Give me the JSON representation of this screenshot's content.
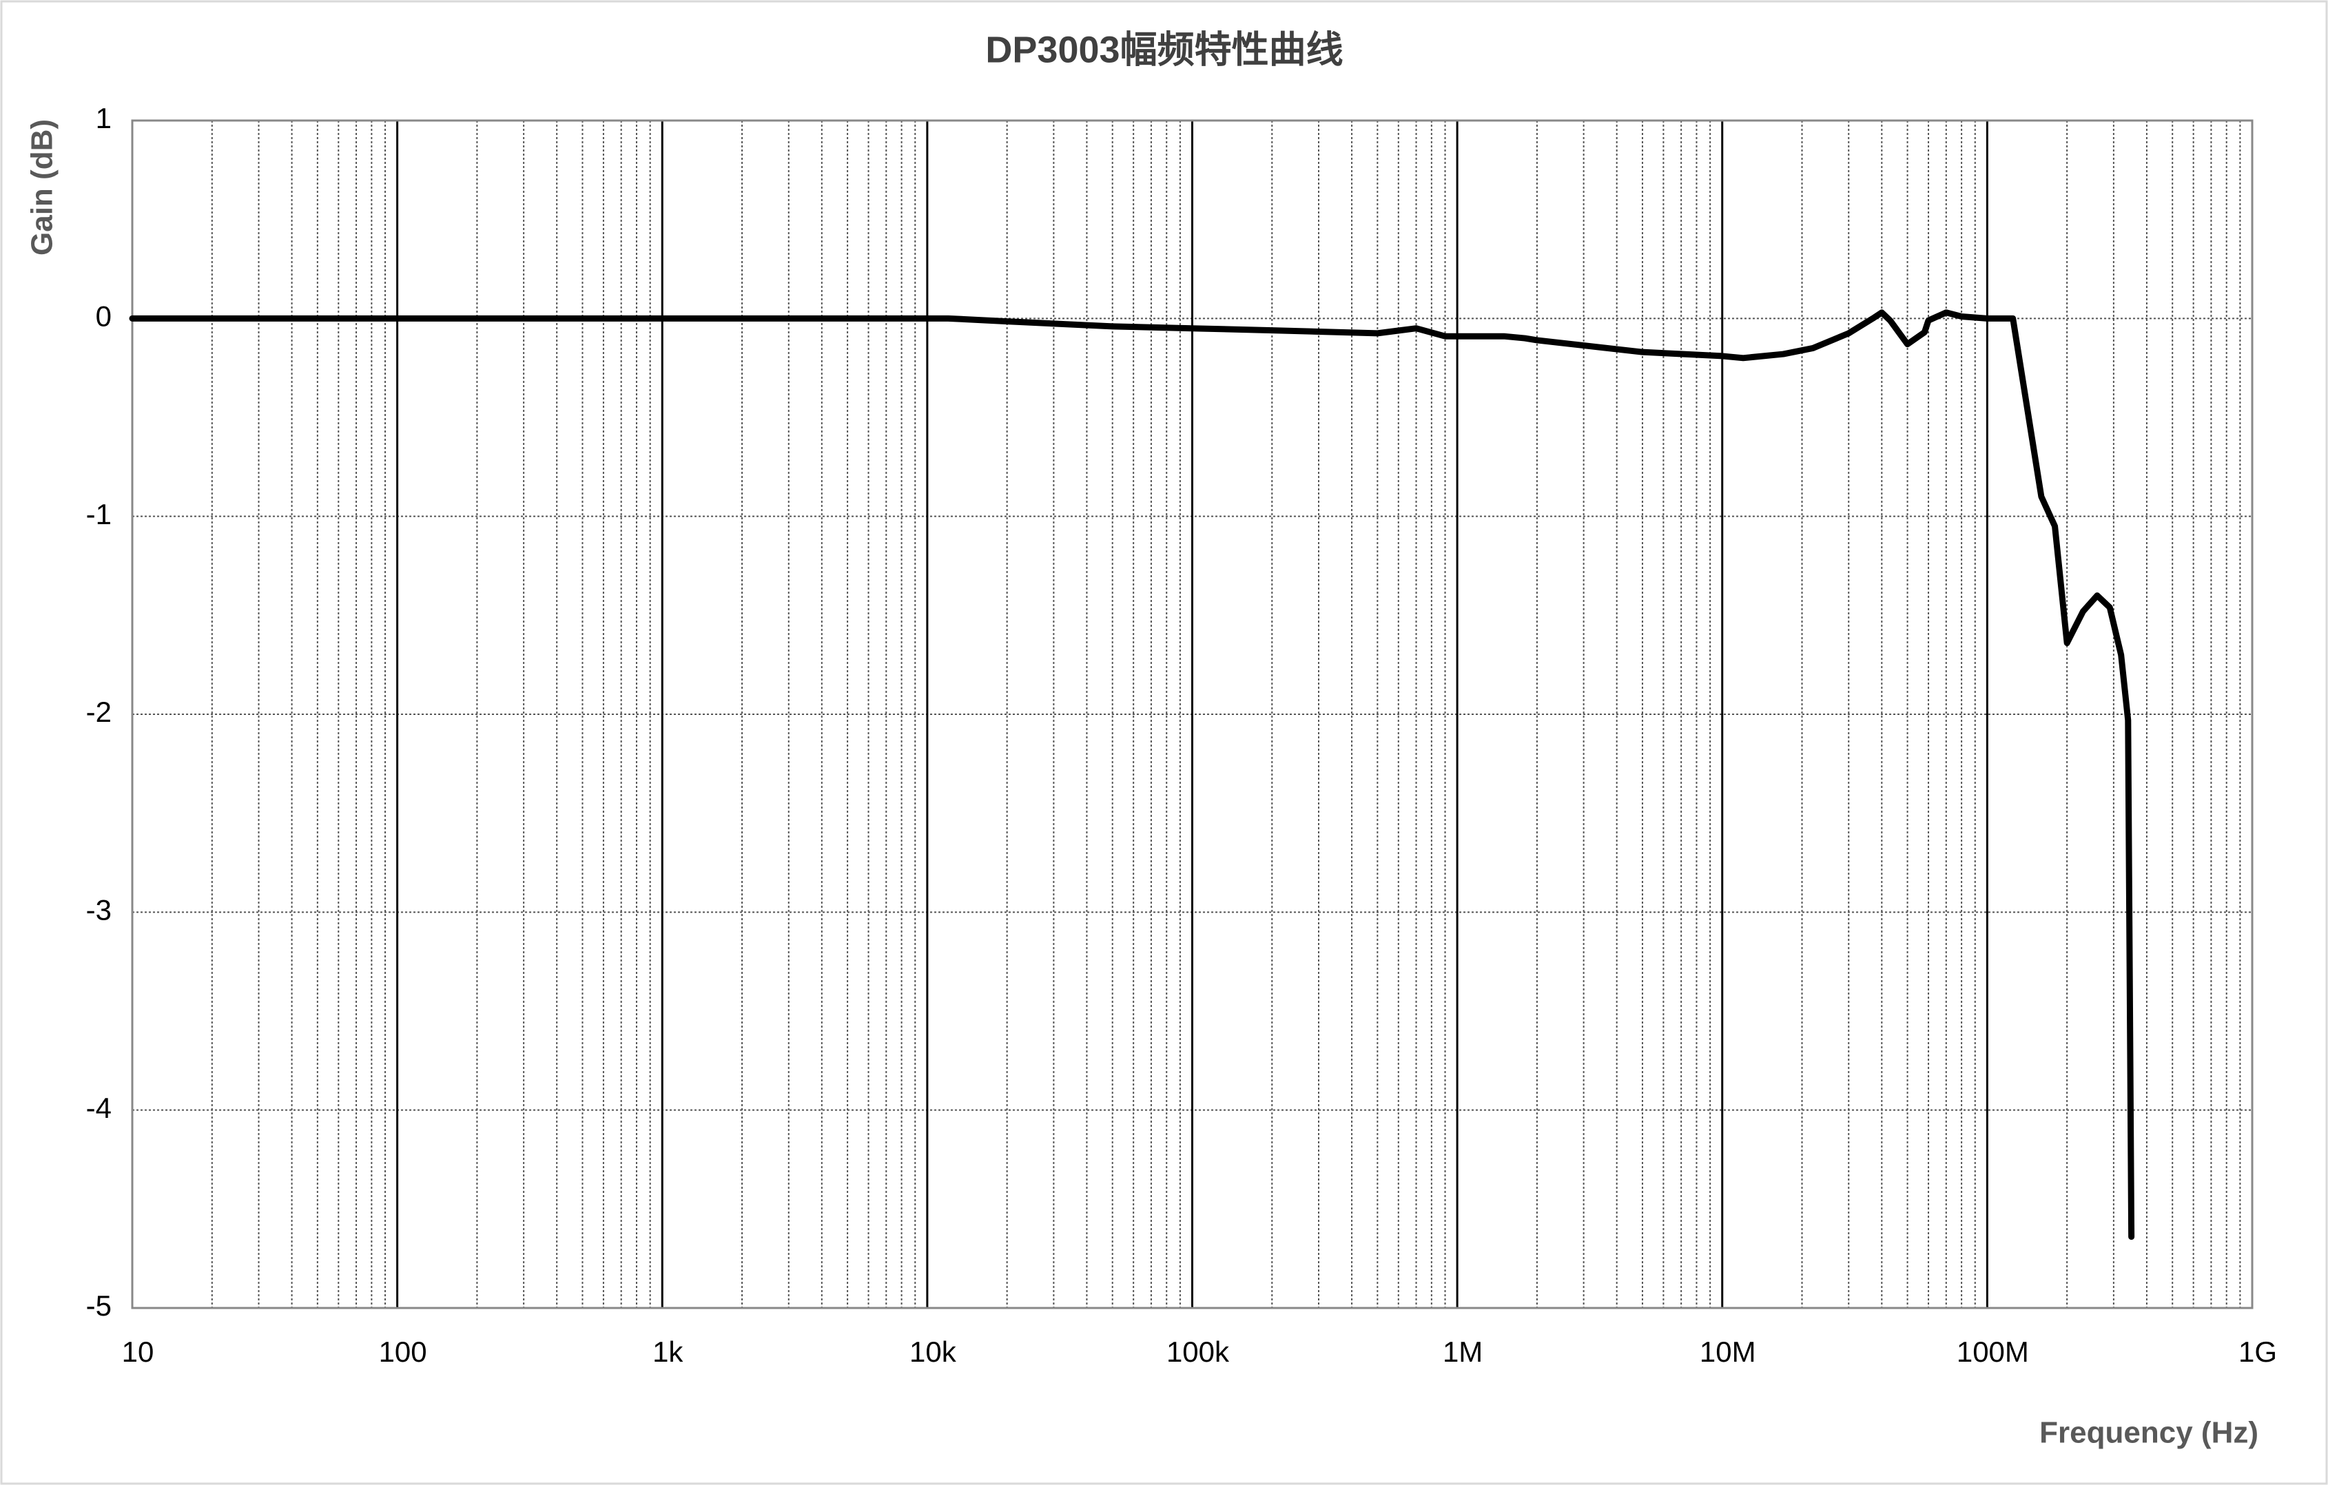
{
  "chart_data": {
    "type": "line",
    "title": "DP3003幅频特性曲线",
    "x_label": "Frequency (Hz)",
    "y_label": "Gain (dB)",
    "x_scale": "log",
    "grid": true,
    "xlim": [
      10,
      1000000000
    ],
    "xticks": [
      10,
      100,
      {
        "value": 1000,
        "label": "1k"
      },
      {
        "value": 10000,
        "label": "10k"
      },
      {
        "value": 100000,
        "label": "100k"
      },
      {
        "value": 1000000,
        "label": "1M"
      },
      {
        "value": 10000000,
        "label": "10M"
      },
      {
        "value": 100000000,
        "label": "100M"
      },
      {
        "value": 1000000000,
        "label": "1G"
      }
    ],
    "ylim": [
      -5,
      1
    ],
    "yticks": [
      1,
      0,
      -1,
      -2,
      -3,
      -4,
      -5
    ],
    "x": [
      10,
      10000,
      12000,
      20000,
      50000,
      100000,
      200000,
      500000,
      700000,
      900000,
      1500000,
      1800000,
      2000000,
      5000000,
      10000000,
      12000000,
      17000000,
      22000000,
      30000000,
      37000000,
      40000000,
      43000000,
      50000000,
      58000000,
      60000000,
      70000000,
      80000000,
      100000000,
      125000000,
      160000000,
      180000000,
      200000000,
      230000000,
      260000000,
      290000000,
      320000000,
      340000000,
      350000000
    ],
    "series": [
      {
        "name": "Gain",
        "color": "#000000",
        "values": [
          0,
          0,
          0,
          -0.015,
          -0.04,
          -0.05,
          -0.06,
          -0.075,
          -0.05,
          -0.09,
          -0.09,
          -0.1,
          -0.11,
          -0.17,
          -0.19,
          -0.2,
          -0.18,
          -0.15,
          -0.075,
          0,
          0.03,
          -0.01,
          -0.13,
          -0.07,
          -0.01,
          0.03,
          0.01,
          0,
          0,
          -0.9,
          -1.05,
          -1.64,
          -1.48,
          -1.4,
          -1.46,
          -1.7,
          -2.03,
          -4.64
        ]
      }
    ]
  }
}
